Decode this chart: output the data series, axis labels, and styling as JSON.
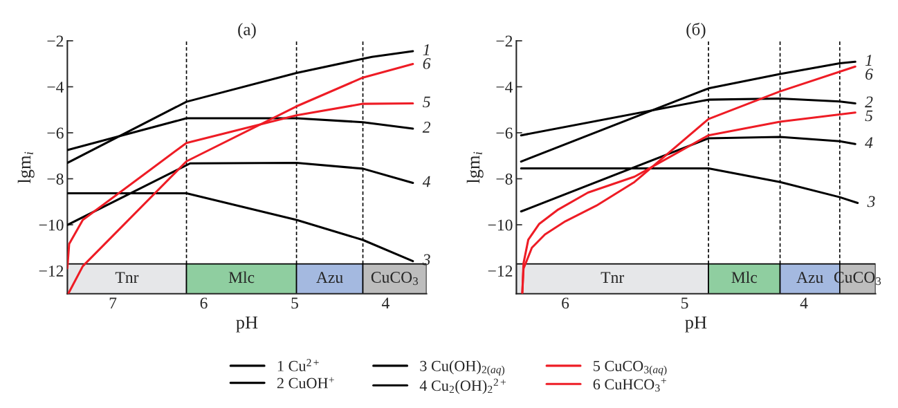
{
  "chart_data": [
    {
      "type": "line",
      "title": "(а)",
      "xlabel": "pH",
      "ylabel": "lgm$_{i}$",
      "xlim": [
        7.5,
        3.55
      ],
      "ylim": [
        -13,
        -2
      ],
      "xticks": [
        7,
        6,
        5,
        4
      ],
      "yticks": [
        -2,
        -4,
        -6,
        -8,
        -10,
        -12
      ],
      "grid": false,
      "legend": "bottom",
      "line_style": "solid",
      "marker": "none",
      "series": [
        {
          "name": "1 Cu$^{2+}$",
          "color": "#000000",
          "x": [
            7.5,
            6.19,
            4.98,
            4.25,
            4.15,
            3.7
          ],
          "values": [
            -7.31,
            -4.65,
            -3.4,
            -2.78,
            -2.7,
            -2.45
          ]
        },
        {
          "name": "2 CuOH$^{+}$",
          "color": "#000000",
          "x": [
            7.5,
            6.19,
            4.98,
            4.25,
            3.7
          ],
          "values": [
            -6.75,
            -5.37,
            -5.37,
            -5.54,
            -5.82
          ]
        },
        {
          "name": "3 Cu(OH)$_{2(aq)}$",
          "color": "#000000",
          "x": [
            7.5,
            6.19,
            4.98,
            4.25,
            3.7
          ],
          "values": [
            -8.63,
            -8.63,
            -9.79,
            -10.66,
            -11.58
          ]
        },
        {
          "name": "4 Cu$_{2}$(OH)$_{2}$$^{2+}$",
          "color": "#000000",
          "x": [
            7.5,
            6.15,
            4.98,
            4.25,
            3.7
          ],
          "values": [
            -10.01,
            -7.33,
            -7.31,
            -7.56,
            -8.18
          ]
        },
        {
          "name": "5 CuCO$_{3(aq)}$",
          "color": "#ee1c25",
          "x": [
            7.5,
            7.48,
            7.33,
            6.19,
            4.98,
            4.25,
            3.7
          ],
          "values": [
            -11.89,
            -10.83,
            -9.79,
            -6.44,
            -5.24,
            -4.74,
            -4.72
          ]
        },
        {
          "name": "6 CuHCO$_{3}$$^{+}$",
          "color": "#ee1c25",
          "x": [
            7.49,
            7.33,
            6.19,
            4.98,
            4.25,
            3.7
          ],
          "values": [
            -13.0,
            -11.8,
            -7.24,
            -4.85,
            -3.6,
            -3.01
          ]
        }
      ],
      "ref_lines": [
        {
          "axis": "x",
          "value": 6.19,
          "color": "#000000",
          "line_style": "dotted"
        },
        {
          "axis": "x",
          "value": 4.98,
          "color": "#000000",
          "line_style": "dotted"
        },
        {
          "axis": "x",
          "value": 4.25,
          "color": "#000000",
          "line_style": "dotted"
        }
      ],
      "bands": [
        {
          "axis": "x",
          "from": 7.5,
          "to": 6.19,
          "label": "Tnr",
          "color": "#e6e7e9"
        },
        {
          "axis": "x",
          "from": 6.19,
          "to": 4.98,
          "label": "Mlc",
          "color": "#8fcea0"
        },
        {
          "axis": "x",
          "from": 4.98,
          "to": 4.25,
          "label": "Azu",
          "color": "#a4b9e0"
        },
        {
          "axis": "x",
          "from": 4.25,
          "to": 3.55,
          "label": "CuCO$_{3}$",
          "color": "#bdbdbd"
        }
      ],
      "annotations": [
        {
          "text": "1",
          "x": 3.7,
          "y": -2.45
        },
        {
          "text": "6",
          "x": 3.7,
          "y": -3.01
        },
        {
          "text": "5",
          "x": 3.7,
          "y": -4.72
        },
        {
          "text": "2",
          "x": 3.7,
          "y": -5.82
        },
        {
          "text": "4",
          "x": 3.7,
          "y": -8.18
        },
        {
          "text": "3",
          "x": 3.7,
          "y": -11.58
        }
      ]
    },
    {
      "type": "line",
      "title": "(б)",
      "xlabel": "pH",
      "ylabel": "lgm$_{i}$",
      "xlim": [
        6.41,
        3.4
      ],
      "ylim": [
        -13,
        -2
      ],
      "xticks": [
        6,
        5,
        4
      ],
      "yticks": [
        -2,
        -4,
        -6,
        -8,
        -10,
        -12
      ],
      "grid": false,
      "line_style": "solid",
      "marker": "none",
      "series": [
        {
          "color": "#000000",
          "x": [
            6.37,
            4.8,
            4.2,
            3.7,
            3.57
          ],
          "values": [
            -7.25,
            -4.07,
            -3.44,
            -2.98,
            -2.91
          ]
        },
        {
          "color": "#000000",
          "x": [
            6.37,
            4.8,
            4.2,
            3.7,
            3.57
          ],
          "values": [
            -6.11,
            -4.56,
            -4.51,
            -4.64,
            -4.72
          ]
        },
        {
          "color": "#000000",
          "x": [
            6.37,
            4.8,
            4.2,
            3.7,
            3.55
          ],
          "values": [
            -7.55,
            -7.55,
            -8.14,
            -8.8,
            -9.05
          ]
        },
        {
          "color": "#000000",
          "x": [
            6.37,
            4.8,
            4.2,
            3.7,
            3.57
          ],
          "values": [
            -9.42,
            -6.24,
            -6.18,
            -6.37,
            -6.49
          ]
        },
        {
          "color": "#ee1c25",
          "x": [
            6.36,
            6.35,
            6.31,
            6.22,
            6.06,
            5.81,
            5.42,
            4.8,
            4.2,
            3.57
          ],
          "values": [
            -12.96,
            -11.68,
            -10.65,
            -9.97,
            -9.34,
            -8.6,
            -7.91,
            -6.11,
            -5.52,
            -5.12
          ]
        },
        {
          "color": "#ee1c25",
          "x": [
            6.36,
            6.35,
            6.28,
            6.17,
            6.0,
            5.74,
            5.42,
            4.8,
            4.2,
            3.57
          ],
          "values": [
            -12.96,
            -11.91,
            -11.0,
            -10.42,
            -9.85,
            -9.17,
            -8.14,
            -5.4,
            -4.2,
            -3.12
          ]
        }
      ],
      "ref_lines": [
        {
          "axis": "x",
          "value": 4.8,
          "color": "#000000",
          "line_style": "dotted"
        },
        {
          "axis": "x",
          "value": 4.2,
          "color": "#000000",
          "line_style": "dotted"
        },
        {
          "axis": "x",
          "value": 3.7,
          "color": "#000000",
          "line_style": "dotted"
        }
      ],
      "bands": [
        {
          "axis": "x",
          "from": 6.41,
          "to": 4.8,
          "label": "Tnr",
          "color": "#e6e7e9"
        },
        {
          "axis": "x",
          "from": 4.8,
          "to": 4.2,
          "label": "Mlc",
          "color": "#8fcea0"
        },
        {
          "axis": "x",
          "from": 4.2,
          "to": 3.7,
          "label": "Azu",
          "color": "#a4b9e0"
        },
        {
          "axis": "x",
          "from": 3.7,
          "to": 3.4,
          "label": "CuCO$_{3}$",
          "color": "#bdbdbd"
        }
      ],
      "annotations": [
        {
          "text": "1",
          "x": 3.57,
          "y": -2.91
        },
        {
          "text": "6",
          "x": 3.57,
          "y": -3.12
        },
        {
          "text": "2",
          "x": 3.57,
          "y": -4.72
        },
        {
          "text": "5",
          "x": 3.57,
          "y": -5.12
        },
        {
          "text": "4",
          "x": 3.57,
          "y": -6.49
        },
        {
          "text": "3",
          "x": 3.55,
          "y": -9.05
        }
      ]
    }
  ]
}
